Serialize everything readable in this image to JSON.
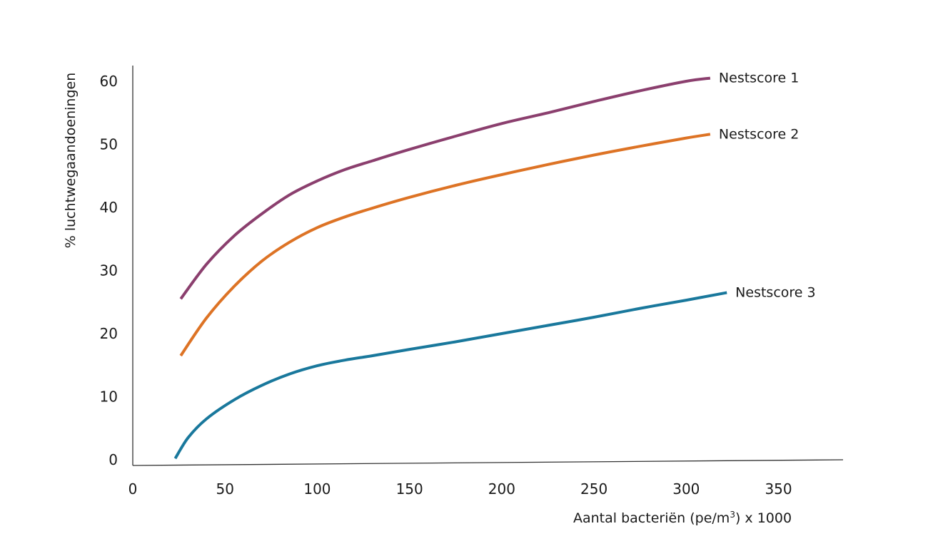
{
  "chart_data": {
    "type": "line",
    "title": "",
    "xlabel": "Aantal bacteriën (pe/m",
    "xlabel_sup": "3",
    "xlabel_suffix": ") x 1000",
    "ylabel": "% luchtwegaandoeningen",
    "xlim": [
      0,
      385
    ],
    "ylim": [
      0,
      63
    ],
    "x_ticks": [
      "0",
      "50",
      "100",
      "150",
      "200",
      "250",
      "300",
      "350"
    ],
    "y_ticks": [
      "0",
      "10",
      "20",
      "30",
      "40",
      "50",
      "60"
    ],
    "grid": false,
    "series": [
      {
        "name": "Nestscore 1",
        "color": "#8b3f6e",
        "x": [
          26,
          40,
          55,
          70,
          85,
          100,
          115,
          130,
          150,
          175,
          200,
          225,
          250,
          275,
          300,
          313
        ],
        "y": [
          25.5,
          31.0,
          35.5,
          39.0,
          42.0,
          44.2,
          46.0,
          47.4,
          49.2,
          51.3,
          53.3,
          55.0,
          56.8,
          58.5,
          60.0,
          60.5
        ]
      },
      {
        "name": "Nestscore 2",
        "color": "#dd7325",
        "x": [
          26,
          40,
          55,
          70,
          85,
          100,
          115,
          130,
          150,
          175,
          200,
          225,
          250,
          275,
          300,
          313
        ],
        "y": [
          16.5,
          22.5,
          27.5,
          31.5,
          34.5,
          36.8,
          38.5,
          39.9,
          41.6,
          43.5,
          45.2,
          46.8,
          48.3,
          49.7,
          51.0,
          51.6
        ]
      },
      {
        "name": "Nestscore 3",
        "color": "#19789c",
        "x": [
          23,
          30,
          40,
          55,
          70,
          85,
          100,
          115,
          130,
          150,
          175,
          200,
          225,
          250,
          275,
          300,
          322
        ],
        "y": [
          0.2,
          3.5,
          6.5,
          9.5,
          11.8,
          13.6,
          14.9,
          15.8,
          16.5,
          17.5,
          18.7,
          20.0,
          21.3,
          22.6,
          24.0,
          25.3,
          26.5
        ]
      }
    ]
  }
}
